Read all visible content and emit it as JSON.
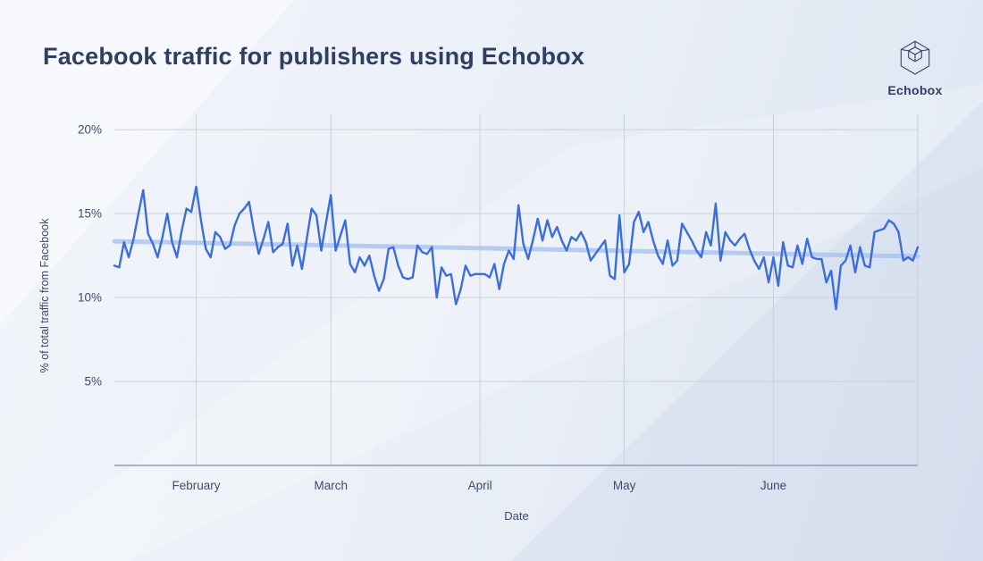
{
  "header": {
    "title": "Facebook traffic for publishers using Echobox",
    "brand": "Echobox"
  },
  "colors": {
    "title_text": "#2e3f63",
    "axis_text": "#3c4c70",
    "gridline": "#c9d1e0",
    "axis_line": "#8f9db4",
    "series_line": "#3c6edb",
    "trend_line": "#abc4ee",
    "background": "#edf1f8"
  },
  "chart_data": {
    "type": "line",
    "title": "Facebook traffic for publishers using Echobox",
    "xlabel": "Date",
    "ylabel": "% of total traffic from Facebook",
    "ylim": [
      0,
      20.7
    ],
    "grid": true,
    "legend": "none",
    "yticks": [
      {
        "value": 5,
        "label": "5%"
      },
      {
        "value": 10,
        "label": "10%"
      },
      {
        "value": 15,
        "label": "15%"
      },
      {
        "value": 20,
        "label": "20%"
      }
    ],
    "x_start_date": "Jan 15",
    "x_end_date": "Jun 30",
    "frequency": "daily",
    "xticks": [
      {
        "day": 17,
        "label": "February"
      },
      {
        "day": 45,
        "label": "March"
      },
      {
        "day": 76,
        "label": "April"
      },
      {
        "day": 106,
        "label": "May"
      },
      {
        "day": 137,
        "label": "June"
      }
    ],
    "series": [
      {
        "name": "% of total traffic from Facebook (daily)",
        "color": "#3c6edb",
        "values": [
          11.9,
          11.8,
          13.3,
          12.4,
          13.5,
          15.0,
          16.4,
          13.8,
          13.2,
          12.4,
          13.6,
          15.0,
          13.3,
          12.4,
          14.0,
          15.3,
          15.1,
          16.6,
          14.6,
          12.9,
          12.4,
          13.9,
          13.6,
          12.9,
          13.1,
          14.3,
          15.0,
          15.3,
          15.7,
          14.0,
          12.6,
          13.5,
          14.5,
          12.7,
          13.0,
          13.2,
          14.4,
          11.9,
          13.1,
          11.7,
          13.5,
          15.3,
          14.9,
          12.8,
          14.5,
          16.1,
          12.8,
          13.7,
          14.6,
          12.0,
          11.5,
          12.4,
          11.9,
          12.5,
          11.3,
          10.4,
          11.1,
          12.9,
          13.0,
          11.9,
          11.2,
          11.1,
          11.2,
          13.1,
          12.7,
          12.6,
          13.0,
          10.0,
          11.8,
          11.3,
          11.4,
          9.6,
          10.5,
          11.9,
          11.3,
          11.4,
          11.4,
          11.4,
          11.2,
          12.0,
          10.5,
          12.0,
          12.8,
          12.3,
          15.5,
          13.2,
          12.3,
          13.4,
          14.7,
          13.4,
          14.6,
          13.6,
          14.2,
          13.4,
          12.8,
          13.6,
          13.4,
          13.9,
          13.3,
          12.2,
          12.6,
          13.0,
          13.4,
          11.3,
          11.1,
          14.9,
          11.5,
          12.0,
          14.5,
          15.1,
          13.9,
          14.5,
          13.4,
          12.5,
          12.0,
          13.4,
          11.9,
          12.2,
          14.4,
          13.9,
          13.4,
          12.8,
          12.4,
          13.9,
          13.1,
          15.6,
          12.2,
          13.9,
          13.4,
          13.1,
          13.5,
          13.8,
          12.9,
          12.2,
          11.7,
          12.4,
          10.9,
          12.4,
          10.7,
          13.3,
          11.9,
          11.8,
          13.1,
          12.0,
          13.5,
          12.4,
          12.3,
          12.3,
          10.9,
          11.6,
          9.3,
          11.9,
          12.2,
          13.1,
          11.5,
          13.0,
          11.9,
          11.8,
          13.9,
          14.0,
          14.1,
          14.6,
          14.4,
          13.9,
          12.2,
          12.4,
          12.2,
          13.0
        ]
      }
    ],
    "trend": {
      "name": "trend line",
      "color": "#abc4ee",
      "start_value": 13.35,
      "end_value": 12.45
    }
  }
}
